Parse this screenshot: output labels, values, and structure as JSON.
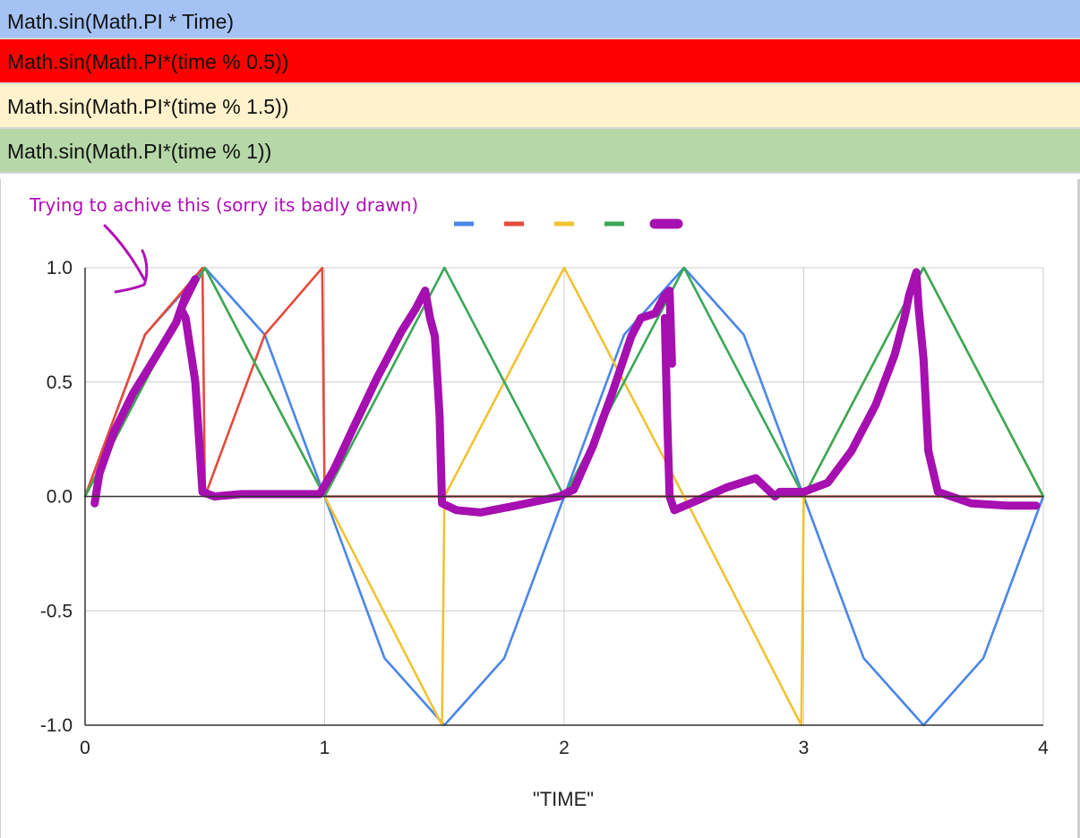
{
  "header_rows": [
    {
      "label": "Math.sin(Math.PI * Time)",
      "color": "#a4c2f4"
    },
    {
      "label": "Math.sin(Math.PI*(time % 0.5))",
      "color": "#ff0000"
    },
    {
      "label": "Math.sin(Math.PI*(time % 1.5))",
      "color": "#fff2cc"
    },
    {
      "label": "Math.sin(Math.PI*(time % 1))",
      "color": "#b6d7a8"
    }
  ],
  "annotation": "Trying to achive this (sorry its badly drawn)",
  "chart_data": {
    "type": "line",
    "title": "",
    "xlabel": "\"TIME\"",
    "ylabel": "",
    "xlim": [
      0,
      4
    ],
    "ylim": [
      -1,
      1
    ],
    "x_ticks": [
      "0",
      "1",
      "2",
      "3",
      "4"
    ],
    "y_ticks": [
      "1.0",
      "0.5",
      "0.0",
      "-0.5",
      "-1.0"
    ],
    "grid": true,
    "legend": "top-center",
    "series": [
      {
        "key": "sin_time",
        "color": "#4a86e8",
        "formula": "sin(pi*t)",
        "points": [
          [
            0,
            0
          ],
          [
            0.25,
            0.707
          ],
          [
            0.5,
            1
          ],
          [
            0.75,
            0.707
          ],
          [
            1,
            0
          ],
          [
            1.25,
            -0.707
          ],
          [
            1.5,
            -1
          ],
          [
            1.75,
            -0.707
          ],
          [
            2,
            0
          ],
          [
            2.25,
            0.707
          ],
          [
            2.5,
            1
          ],
          [
            2.75,
            0.707
          ],
          [
            3,
            0
          ],
          [
            3.25,
            -0.707
          ],
          [
            3.5,
            -1
          ],
          [
            3.75,
            -0.707
          ],
          [
            4,
            0
          ]
        ]
      },
      {
        "key": "sin_mod_0_5",
        "color": "#e64a3b",
        "formula": "sin(pi*(t % 0.5))",
        "points": [
          [
            0,
            0
          ],
          [
            0.25,
            0.707
          ],
          [
            0.49,
            0.999
          ],
          [
            0.5,
            0
          ],
          [
            0.75,
            0.707
          ],
          [
            0.99,
            0.999
          ],
          [
            1,
            0
          ],
          [
            1.5,
            0
          ],
          [
            2,
            0
          ],
          [
            2.5,
            0
          ],
          [
            3,
            0
          ],
          [
            3.5,
            0
          ],
          [
            4,
            0
          ]
        ]
      },
      {
        "key": "sin_mod_1_5",
        "color": "#f1c232",
        "formula": "sin(pi*(t % 1.5))",
        "points": [
          [
            0,
            0
          ],
          [
            0.5,
            1
          ],
          [
            1,
            0
          ],
          [
            1.49,
            -1
          ],
          [
            1.5,
            0
          ],
          [
            2,
            1
          ],
          [
            2.5,
            0
          ],
          [
            2.99,
            -1
          ],
          [
            3,
            0
          ],
          [
            3.5,
            1
          ],
          [
            4,
            0
          ]
        ]
      },
      {
        "key": "sin_mod_1",
        "color": "#3aa757",
        "formula": "sin(pi*(t % 1))",
        "points": [
          [
            0,
            0
          ],
          [
            0.5,
            1
          ],
          [
            1,
            0
          ],
          [
            1.5,
            1
          ],
          [
            2,
            0
          ],
          [
            2.5,
            1
          ],
          [
            3,
            0
          ],
          [
            3.5,
            1
          ],
          [
            4,
            0
          ]
        ]
      },
      {
        "key": "hand_drawn_target",
        "color": "#a60fb0",
        "points": [
          [
            0.04,
            -0.03
          ],
          [
            0.06,
            0.1
          ],
          [
            0.12,
            0.28
          ],
          [
            0.2,
            0.45
          ],
          [
            0.3,
            0.62
          ],
          [
            0.38,
            0.76
          ],
          [
            0.42,
            0.88
          ],
          [
            0.46,
            0.95
          ],
          [
            0.4,
            0.82
          ],
          [
            0.42,
            0.78
          ],
          [
            0.46,
            0.5
          ],
          [
            0.49,
            0.02
          ],
          [
            0.54,
            0.0
          ],
          [
            0.65,
            0.01
          ],
          [
            0.8,
            0.01
          ],
          [
            0.98,
            0.01
          ],
          [
            1.04,
            0.12
          ],
          [
            1.12,
            0.3
          ],
          [
            1.22,
            0.52
          ],
          [
            1.32,
            0.72
          ],
          [
            1.38,
            0.82
          ],
          [
            1.42,
            0.9
          ],
          [
            1.44,
            0.78
          ],
          [
            1.46,
            0.7
          ],
          [
            1.48,
            0.35
          ],
          [
            1.49,
            -0.03
          ],
          [
            1.55,
            -0.06
          ],
          [
            1.65,
            -0.07
          ],
          [
            1.8,
            -0.04
          ],
          [
            1.98,
            0.0
          ],
          [
            2.04,
            0.03
          ],
          [
            2.12,
            0.22
          ],
          [
            2.2,
            0.45
          ],
          [
            2.28,
            0.7
          ],
          [
            2.32,
            0.78
          ],
          [
            2.38,
            0.8
          ],
          [
            2.42,
            0.88
          ],
          [
            2.44,
            0.9
          ],
          [
            2.45,
            0.58
          ],
          [
            2.42,
            0.78
          ],
          [
            2.43,
            0.35
          ],
          [
            2.44,
            0.0
          ],
          [
            2.46,
            -0.06
          ],
          [
            2.55,
            -0.02
          ],
          [
            2.68,
            0.04
          ],
          [
            2.8,
            0.08
          ],
          [
            2.88,
            0.0
          ],
          [
            2.9,
            0.02
          ],
          [
            3.0,
            0.02
          ],
          [
            3.1,
            0.06
          ],
          [
            3.2,
            0.2
          ],
          [
            3.3,
            0.4
          ],
          [
            3.38,
            0.62
          ],
          [
            3.42,
            0.78
          ],
          [
            3.44,
            0.88
          ],
          [
            3.47,
            0.98
          ],
          [
            3.48,
            0.82
          ],
          [
            3.5,
            0.6
          ],
          [
            3.52,
            0.2
          ],
          [
            3.56,
            0.02
          ],
          [
            3.7,
            -0.03
          ],
          [
            3.85,
            -0.04
          ],
          [
            3.97,
            -0.04
          ]
        ]
      }
    ]
  }
}
